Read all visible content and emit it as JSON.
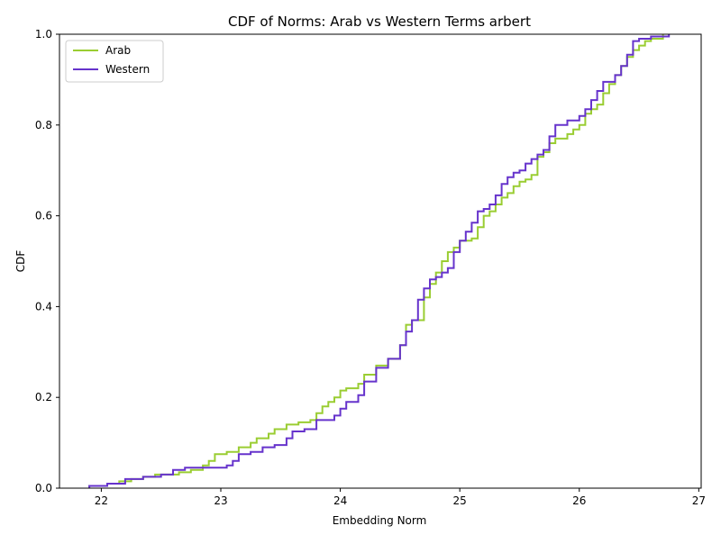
{
  "chart_data": {
    "type": "line",
    "title": "CDF of Norms: Arab vs Western Terms arbert",
    "xlabel": "Embedding Norm",
    "ylabel": "CDF",
    "xlim": [
      21.65,
      27.02
    ],
    "ylim": [
      0.0,
      1.0
    ],
    "xticks": [
      22,
      23,
      24,
      25,
      26,
      27
    ],
    "yticks": [
      0.0,
      0.2,
      0.4,
      0.6,
      0.8,
      1.0
    ],
    "xtick_labels": [
      "22",
      "23",
      "24",
      "25",
      "26",
      "27"
    ],
    "ytick_labels": [
      "0.0",
      "0.2",
      "0.4",
      "0.6",
      "0.8",
      "1.0"
    ],
    "grid": false,
    "legend_position": "top-left",
    "series": [
      {
        "name": "Arab",
        "color": "#9ACD32",
        "step": true,
        "x": [
          21.9,
          22.05,
          22.15,
          22.25,
          22.35,
          22.45,
          22.55,
          22.65,
          22.75,
          22.85,
          22.9,
          22.95,
          23.05,
          23.15,
          23.25,
          23.3,
          23.4,
          23.45,
          23.55,
          23.65,
          23.75,
          23.8,
          23.85,
          23.9,
          23.95,
          24.0,
          24.05,
          24.15,
          24.2,
          24.3,
          24.4,
          24.5,
          24.55,
          24.6,
          24.7,
          24.75,
          24.8,
          24.85,
          24.9,
          24.95,
          25.0,
          25.05,
          25.1,
          25.15,
          25.2,
          25.25,
          25.3,
          25.35,
          25.4,
          25.45,
          25.5,
          25.55,
          25.6,
          25.65,
          25.7,
          25.75,
          25.8,
          25.9,
          25.95,
          26.0,
          26.05,
          26.1,
          26.15,
          26.2,
          26.25,
          26.3,
          26.35,
          26.4,
          26.45,
          26.5,
          26.55,
          26.6,
          26.7
        ],
        "y": [
          0.005,
          0.01,
          0.015,
          0.02,
          0.025,
          0.03,
          0.03,
          0.035,
          0.04,
          0.05,
          0.06,
          0.075,
          0.08,
          0.09,
          0.1,
          0.11,
          0.12,
          0.13,
          0.14,
          0.145,
          0.15,
          0.165,
          0.18,
          0.19,
          0.2,
          0.215,
          0.22,
          0.23,
          0.25,
          0.27,
          0.285,
          0.315,
          0.36,
          0.37,
          0.42,
          0.45,
          0.475,
          0.5,
          0.52,
          0.53,
          0.545,
          0.545,
          0.55,
          0.575,
          0.6,
          0.61,
          0.625,
          0.64,
          0.65,
          0.665,
          0.675,
          0.68,
          0.69,
          0.73,
          0.74,
          0.76,
          0.77,
          0.78,
          0.79,
          0.8,
          0.825,
          0.835,
          0.845,
          0.87,
          0.89,
          0.91,
          0.93,
          0.95,
          0.965,
          0.975,
          0.985,
          0.99,
          1.0
        ]
      },
      {
        "name": "Western",
        "color": "#6633CC",
        "step": true,
        "x": [
          21.9,
          22.05,
          22.2,
          22.35,
          22.5,
          22.6,
          22.7,
          22.8,
          22.95,
          23.05,
          23.1,
          23.15,
          23.25,
          23.35,
          23.45,
          23.55,
          23.6,
          23.7,
          23.8,
          23.85,
          23.95,
          24.0,
          24.05,
          24.15,
          24.2,
          24.3,
          24.4,
          24.5,
          24.55,
          24.6,
          24.65,
          24.7,
          24.75,
          24.8,
          24.85,
          24.9,
          24.95,
          25.0,
          25.05,
          25.1,
          25.15,
          25.2,
          25.25,
          25.3,
          25.35,
          25.4,
          25.45,
          25.5,
          25.55,
          25.6,
          25.65,
          25.7,
          25.75,
          25.8,
          25.9,
          26.0,
          26.05,
          26.1,
          26.15,
          26.2,
          26.3,
          26.35,
          26.4,
          26.45,
          26.5,
          26.6,
          26.75
        ],
        "y": [
          0.005,
          0.01,
          0.02,
          0.025,
          0.03,
          0.04,
          0.045,
          0.045,
          0.045,
          0.05,
          0.06,
          0.075,
          0.08,
          0.09,
          0.095,
          0.11,
          0.125,
          0.13,
          0.15,
          0.15,
          0.16,
          0.175,
          0.19,
          0.205,
          0.235,
          0.265,
          0.285,
          0.315,
          0.345,
          0.37,
          0.415,
          0.44,
          0.46,
          0.465,
          0.475,
          0.485,
          0.52,
          0.545,
          0.565,
          0.585,
          0.61,
          0.615,
          0.625,
          0.645,
          0.67,
          0.685,
          0.695,
          0.7,
          0.715,
          0.725,
          0.735,
          0.745,
          0.775,
          0.8,
          0.81,
          0.82,
          0.835,
          0.855,
          0.875,
          0.895,
          0.91,
          0.93,
          0.955,
          0.985,
          0.99,
          0.995,
          1.0
        ]
      }
    ]
  }
}
